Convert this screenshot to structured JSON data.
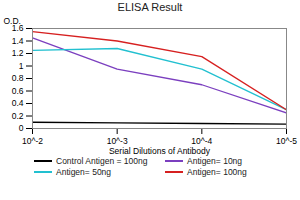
{
  "chart_data": {
    "type": "line",
    "title": "ELISA Result",
    "x_label": "Serial Dilutions of Antibody",
    "y_label": "O.D.",
    "log": "x",
    "x": [
      0.01,
      0.001,
      0.0001,
      1e-05
    ],
    "xlim": [
      0.01,
      1e-05
    ],
    "xticks": [
      {
        "value": 0.01,
        "label": "10^-2"
      },
      {
        "value": 0.001,
        "label": "10^-3"
      },
      {
        "value": 0.0001,
        "label": "10^-4"
      },
      {
        "value": 1e-05,
        "label": "10^-5"
      }
    ],
    "ylim": [
      0,
      1.6
    ],
    "yticks": [
      0,
      0.2,
      0.4,
      0.6,
      0.8,
      1,
      1.2,
      1.4,
      1.6
    ],
    "grid": false,
    "legend": "bottom",
    "series": [
      {
        "name": "Control Antigen = 100ng",
        "color": "#000000",
        "values": [
          0.1,
          0.09,
          0.08,
          0.07
        ]
      },
      {
        "name": "Antigen= 10ng",
        "color": "#7b3fbf",
        "values": [
          1.45,
          0.95,
          0.7,
          0.25
        ]
      },
      {
        "name": "Antigen= 50ng",
        "color": "#22c0d0",
        "values": [
          1.25,
          1.28,
          0.95,
          0.3
        ]
      },
      {
        "name": "Antigen= 100ng",
        "color": "#d62020",
        "values": [
          1.55,
          1.4,
          1.15,
          0.3
        ]
      }
    ]
  }
}
